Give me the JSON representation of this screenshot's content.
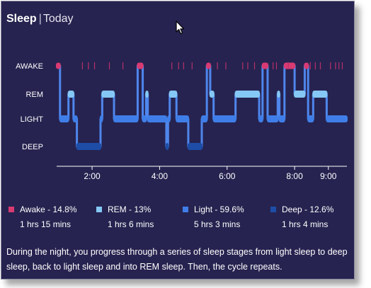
{
  "header": {
    "title": "Sleep",
    "separator": "|",
    "subtitle": "Today"
  },
  "chart_data": {
    "type": "line",
    "y_levels": [
      "AWAKE",
      "REM",
      "LIGHT",
      "DEEP"
    ],
    "x_tick_labels": [
      "2:00",
      "4:00",
      "6:00",
      "8:00",
      "9:00"
    ],
    "x_ticks_hours": [
      2,
      4,
      6,
      8,
      9
    ],
    "x_range_hours": [
      0.95,
      9.55
    ],
    "stage_colors": {
      "AWAKE": "#d93a72",
      "REM": "#86c8f5",
      "LIGHT": "#3f7ee8",
      "DEEP": "#1d4da7"
    },
    "segments": [
      {
        "stage": "AWAKE",
        "start": 0.95,
        "end": 1.05
      },
      {
        "stage": "LIGHT",
        "start": 1.05,
        "end": 1.3
      },
      {
        "stage": "REM",
        "start": 1.3,
        "end": 1.45
      },
      {
        "stage": "LIGHT",
        "start": 1.45,
        "end": 1.55
      },
      {
        "stage": "DEEP",
        "start": 1.55,
        "end": 2.25
      },
      {
        "stage": "LIGHT",
        "start": 2.25,
        "end": 2.3
      },
      {
        "stage": "REM",
        "start": 2.3,
        "end": 2.65
      },
      {
        "stage": "LIGHT",
        "start": 2.65,
        "end": 3.35
      },
      {
        "stage": "AWAKE",
        "start": 3.35,
        "end": 3.5
      },
      {
        "stage": "LIGHT",
        "start": 3.5,
        "end": 3.6
      },
      {
        "stage": "REM",
        "start": 3.6,
        "end": 3.65
      },
      {
        "stage": "LIGHT",
        "start": 3.65,
        "end": 4.2
      },
      {
        "stage": "DEEP",
        "start": 4.2,
        "end": 4.25
      },
      {
        "stage": "LIGHT",
        "start": 4.25,
        "end": 4.3
      },
      {
        "stage": "REM",
        "start": 4.3,
        "end": 4.5
      },
      {
        "stage": "LIGHT",
        "start": 4.5,
        "end": 4.85
      },
      {
        "stage": "DEEP",
        "start": 4.85,
        "end": 5.25
      },
      {
        "stage": "LIGHT",
        "start": 5.25,
        "end": 5.4
      },
      {
        "stage": "AWAKE",
        "start": 5.4,
        "end": 5.5
      },
      {
        "stage": "REM",
        "start": 5.5,
        "end": 5.6
      },
      {
        "stage": "LIGHT",
        "start": 5.6,
        "end": 6.25
      },
      {
        "stage": "REM",
        "start": 6.25,
        "end": 6.95
      },
      {
        "stage": "LIGHT",
        "start": 6.95,
        "end": 7.05
      },
      {
        "stage": "AWAKE",
        "start": 7.05,
        "end": 7.2
      },
      {
        "stage": "LIGHT",
        "start": 7.2,
        "end": 7.5
      },
      {
        "stage": "REM",
        "start": 7.5,
        "end": 7.55
      },
      {
        "stage": "LIGHT",
        "start": 7.55,
        "end": 7.7
      },
      {
        "stage": "AWAKE",
        "start": 7.7,
        "end": 8.0
      },
      {
        "stage": "REM",
        "start": 8.0,
        "end": 8.3
      },
      {
        "stage": "AWAKE",
        "start": 8.3,
        "end": 8.4
      },
      {
        "stage": "LIGHT",
        "start": 8.4,
        "end": 8.55
      },
      {
        "stage": "REM",
        "start": 8.55,
        "end": 8.95
      },
      {
        "stage": "LIGHT",
        "start": 8.95,
        "end": 9.55
      }
    ],
    "awake_ticks_hours": [
      1.7,
      1.88,
      2.06,
      2.5,
      2.9,
      4.35,
      4.55,
      4.7,
      4.95,
      5.7,
      5.95,
      6.45,
      6.6,
      6.8,
      7.35,
      7.45,
      7.8,
      8.45,
      8.6,
      8.75,
      9.05,
      9.2,
      9.3,
      9.4
    ],
    "legend": [
      {
        "label": "Awake - 14.8%",
        "duration": "1 hrs 15 mins",
        "color": "#d93a72"
      },
      {
        "label": "REM - 13%",
        "duration": "1 hrs 6 mins",
        "color": "#86c8f5"
      },
      {
        "label": "Light - 59.6%",
        "duration": "5 hrs 3 mins",
        "color": "#3f7ee8"
      },
      {
        "label": "Deep - 12.6%",
        "duration": "1 hrs 4 mins",
        "color": "#1d4da7"
      }
    ]
  },
  "description": "During the night, you progress through a series of sleep stages from light sleep to deep sleep, back to light sleep and into REM sleep. Then, the cycle repeats.",
  "icons": {
    "cursor": "mouse-pointer-icon"
  }
}
